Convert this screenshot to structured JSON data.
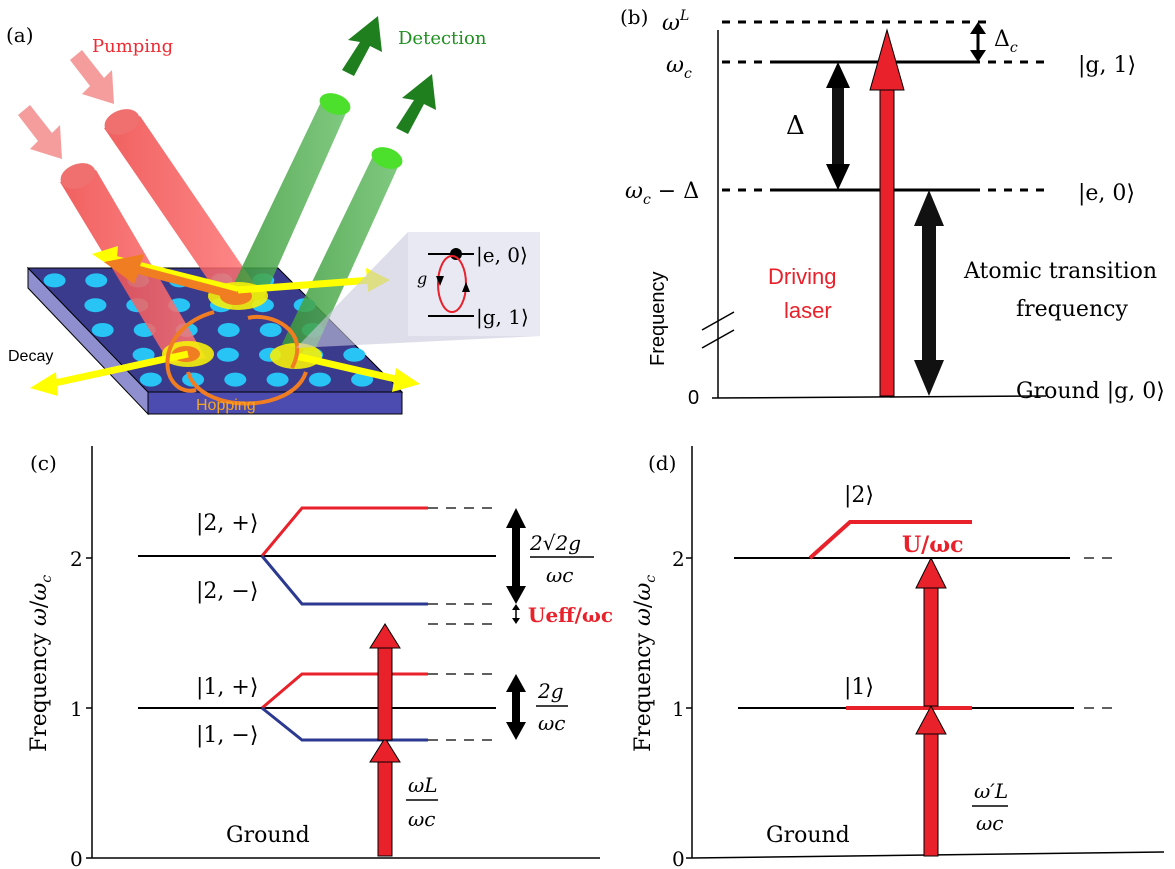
{
  "panel_a": {
    "label": "(a)",
    "pumping": "Pumping",
    "detection": "Detection",
    "decay": "Decay",
    "hopping": "Hopping",
    "inset_upper": "|e, 0⟩",
    "inset_lower": "|g, 1⟩",
    "inset_g": "g",
    "colors": {
      "pump": "#ee2b33",
      "detect": "#2a9a2a",
      "slab": "#3b3b8e",
      "hole": "#27c4f5",
      "yellow": "#ffff00",
      "orange": "#f07d22"
    }
  },
  "panel_b": {
    "label": "(b)",
    "omega_L": "ωL",
    "omega_c": "ωc",
    "delta": "Δ",
    "delta_c": "Δc",
    "omega_c_minus_delta": "ωc − Δ",
    "state_g1": "|g, 1⟩",
    "state_e0": "|e, 0⟩",
    "driving_laser_1": "Driving",
    "driving_laser_2": "laser",
    "atomic_1": "Atomic transition",
    "atomic_2": "frequency",
    "frequency_axis": "Frequency",
    "zero": "0",
    "ground": "Ground |g, 0⟩"
  },
  "panel_c": {
    "label": "(c)",
    "yaxis": "Frequency ω/ωc",
    "ticks": [
      "0",
      "1",
      "2"
    ],
    "state_2p": "|2, +⟩",
    "state_2m": "|2, −⟩",
    "state_1p": "|1, +⟩",
    "state_1m": "|1, −⟩",
    "split2_num": "2√2g",
    "split2_den": "ωc",
    "split1_num": "2g",
    "split1_den": "ωc",
    "ueff": "Ueff/ωc",
    "drive_num": "ωL",
    "drive_den": "ωc",
    "ground": "Ground"
  },
  "panel_d": {
    "label": "(d)",
    "yaxis": "Frequency ω/ωc",
    "ticks": [
      "0",
      "1",
      "2"
    ],
    "state_2": "|2⟩",
    "state_1": "|1⟩",
    "u_label": "U/ωc",
    "drive_num": "ω′L",
    "drive_den": "ωc",
    "ground": "Ground"
  },
  "colors": {
    "red": "#e8212b",
    "blue": "#2b3990",
    "black": "#000000"
  }
}
